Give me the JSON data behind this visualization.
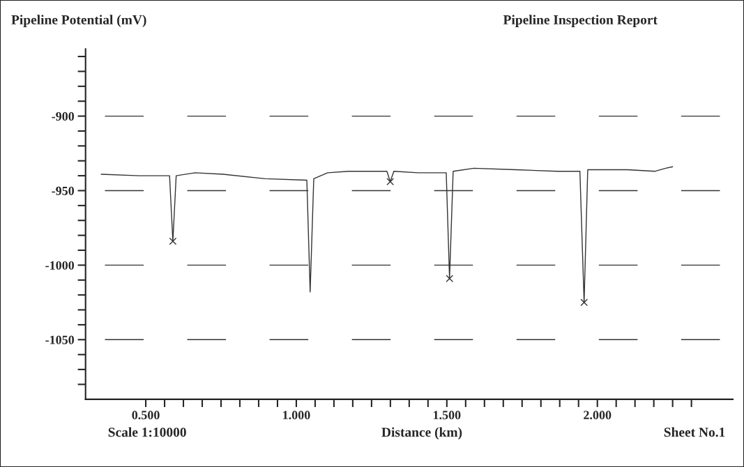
{
  "chart_data": {
    "type": "line",
    "title": "Pipeline Inspection Report",
    "xlabel": "Distance (km)",
    "ylabel": "Pipeline Potential (mV)",
    "annotations": [
      "Scale 1:10000",
      "Sheet No.1"
    ],
    "x": [
      0.352,
      0.479,
      0.579,
      0.59,
      0.601,
      0.664,
      0.757,
      0.896,
      1.035,
      1.046,
      1.058,
      1.104,
      1.174,
      1.301,
      1.312,
      1.324,
      1.405,
      1.498,
      1.509,
      1.521,
      1.59,
      1.729,
      1.868,
      1.942,
      1.956,
      1.968,
      2.1,
      2.192,
      2.227,
      2.25
    ],
    "series": [
      {
        "type": "line",
        "color": "#333333",
        "marker": "none",
        "values": [
          -939,
          -940,
          -940,
          -984,
          -940,
          -938,
          -939,
          -942,
          -943,
          -1018,
          -942,
          -938,
          -937,
          -937,
          -944,
          -937,
          -938,
          -938,
          -1009,
          -937,
          -935,
          -936,
          -937,
          -937,
          -1025,
          -936,
          -936,
          -937,
          -935,
          -934
        ]
      },
      {
        "type": "scatter",
        "color": "#333333",
        "marker": "cross",
        "x": [
          0.59,
          1.312,
          1.509,
          1.956
        ],
        "values": [
          -984,
          -944,
          -1009,
          -1025
        ]
      }
    ],
    "xlim": [
      0.3,
      2.45
    ],
    "ylim": [
      -1090,
      -855
    ],
    "xticks": [
      {
        "value": 0.5,
        "label": "0.500"
      },
      {
        "value": 0.5625,
        "label": null
      },
      {
        "value": 0.625,
        "label": null
      },
      {
        "value": 0.6875,
        "label": null
      },
      {
        "value": 0.75,
        "label": null
      },
      {
        "value": 0.8125,
        "label": null
      },
      {
        "value": 0.875,
        "label": null
      },
      {
        "value": 0.9375,
        "label": null
      },
      {
        "value": 1.0,
        "label": "1.000"
      },
      {
        "value": 1.0625,
        "label": null
      },
      {
        "value": 1.125,
        "label": null
      },
      {
        "value": 1.1875,
        "label": null
      },
      {
        "value": 1.25,
        "label": null
      },
      {
        "value": 1.3125,
        "label": null
      },
      {
        "value": 1.375,
        "label": null
      },
      {
        "value": 1.4375,
        "label": null
      },
      {
        "value": 1.5,
        "label": "1.500"
      },
      {
        "value": 1.5625,
        "label": null
      },
      {
        "value": 1.625,
        "label": null
      },
      {
        "value": 1.6875,
        "label": null
      },
      {
        "value": 1.75,
        "label": null
      },
      {
        "value": 1.8125,
        "label": null
      },
      {
        "value": 1.875,
        "label": null
      },
      {
        "value": 1.9375,
        "label": null
      },
      {
        "value": 2.0,
        "label": "2.000"
      },
      {
        "value": 2.0625,
        "label": null
      },
      {
        "value": 2.125,
        "label": null
      },
      {
        "value": 2.1875,
        "label": null
      },
      {
        "value": 2.25,
        "label": null
      },
      {
        "value": 2.3125,
        "label": null
      }
    ],
    "yticks": [
      {
        "value": -1080,
        "label": null
      },
      {
        "value": -1070,
        "label": null
      },
      {
        "value": -1060,
        "label": null
      },
      -1050,
      {
        "value": -1040,
        "label": null
      },
      {
        "value": -1030,
        "label": null
      },
      {
        "value": -1020,
        "label": null
      },
      {
        "value": -1010,
        "label": null
      },
      -1000,
      {
        "value": -990,
        "label": null
      },
      {
        "value": -980,
        "label": null
      },
      {
        "value": -970,
        "label": null
      },
      {
        "value": -960,
        "label": null
      },
      -950,
      {
        "value": -940,
        "label": null
      },
      {
        "value": -930,
        "label": null
      },
      {
        "value": -920,
        "label": null
      },
      {
        "value": -910,
        "label": null
      },
      -900,
      {
        "value": -890,
        "label": null
      },
      {
        "value": -880,
        "label": null
      },
      {
        "value": -870,
        "label": null
      },
      {
        "value": -860,
        "label": null
      }
    ],
    "grid": "y",
    "legend": false
  }
}
